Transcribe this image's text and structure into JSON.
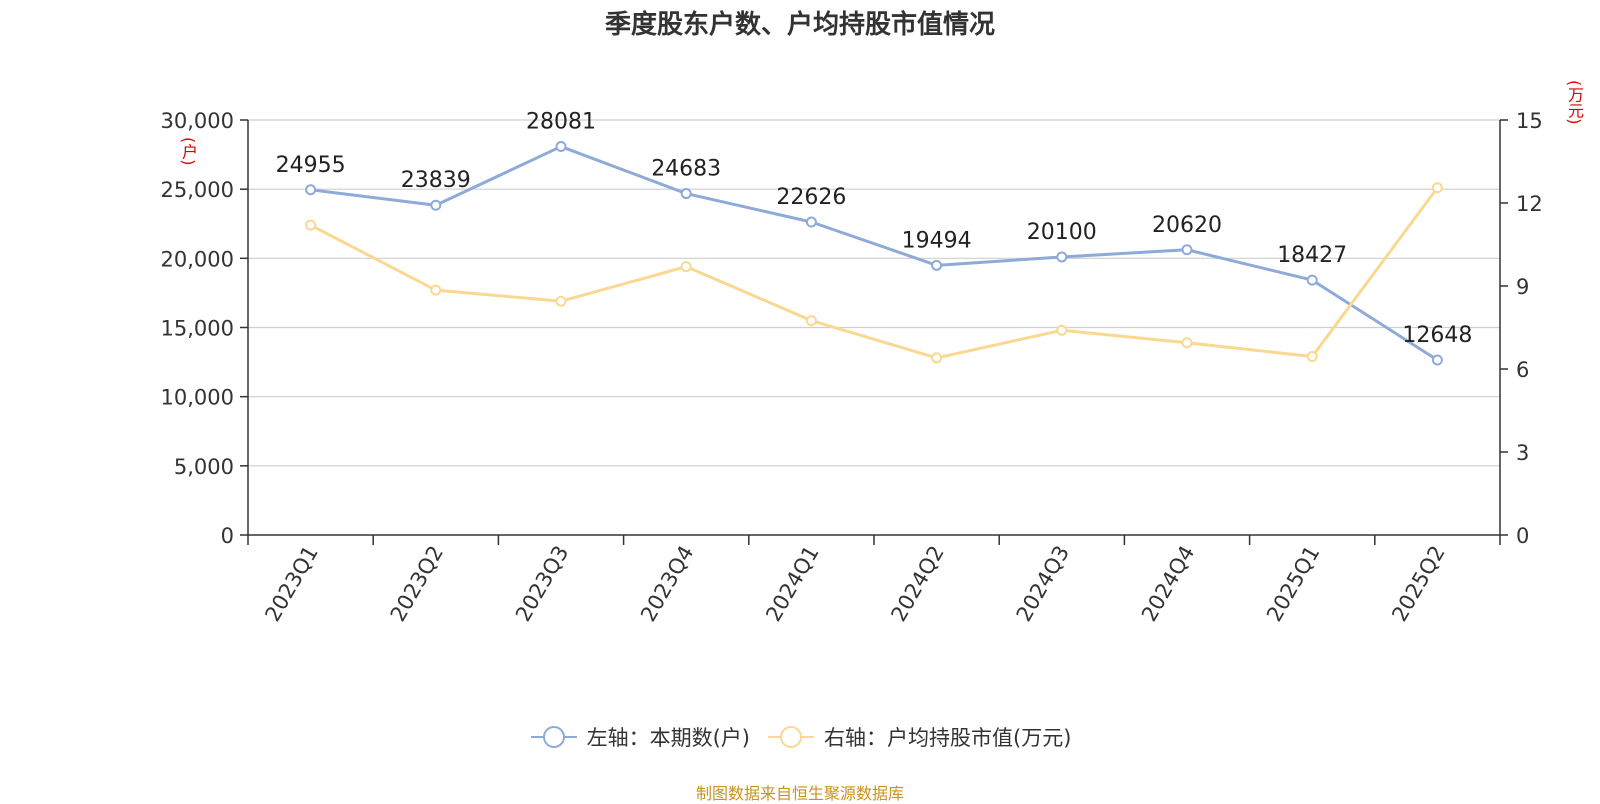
{
  "title": "季度股东户数、户均持股市值情况",
  "left_axis_unit": "(户)",
  "right_axis_unit": "(万元)",
  "source_note": "制图数据来自恒生聚源数据库",
  "legend": [
    {
      "label": "左轴：本期数(户)",
      "color": "#8eaad8"
    },
    {
      "label": "右轴：户均持股市值(万元)",
      "color": "#fbd892"
    }
  ],
  "chart_data": {
    "type": "line",
    "title": "季度股东户数、户均持股市值情况",
    "categories": [
      "2023Q1",
      "2023Q2",
      "2023Q3",
      "2023Q4",
      "2024Q1",
      "2024Q2",
      "2024Q3",
      "2024Q4",
      "2025Q1",
      "2025Q2"
    ],
    "series": [
      {
        "name": "左轴：本期数(户)",
        "axis": "left",
        "color": "#8eaad8",
        "values": [
          24955,
          23839,
          28081,
          24683,
          22626,
          19494,
          20100,
          20620,
          18427,
          12648
        ],
        "show_data_labels": true
      },
      {
        "name": "右轴：户均持股市值(万元)",
        "axis": "right",
        "color": "#fbd892",
        "values": [
          11.2,
          8.85,
          8.45,
          9.7,
          7.75,
          6.4,
          7.4,
          6.95,
          6.45,
          12.55
        ],
        "show_data_labels": false
      }
    ],
    "left_axis": {
      "min": 0,
      "max": 30000,
      "ticks": [
        "0",
        "5,000",
        "10,000",
        "15,000",
        "20,000",
        "25,000",
        "30,000"
      ],
      "unit": "(户)"
    },
    "right_axis": {
      "min": 0,
      "max": 15,
      "ticks": [
        "0",
        "3",
        "6",
        "9",
        "12",
        "15"
      ],
      "unit": "(万元)"
    },
    "grid": true,
    "legend_position": "bottom"
  }
}
